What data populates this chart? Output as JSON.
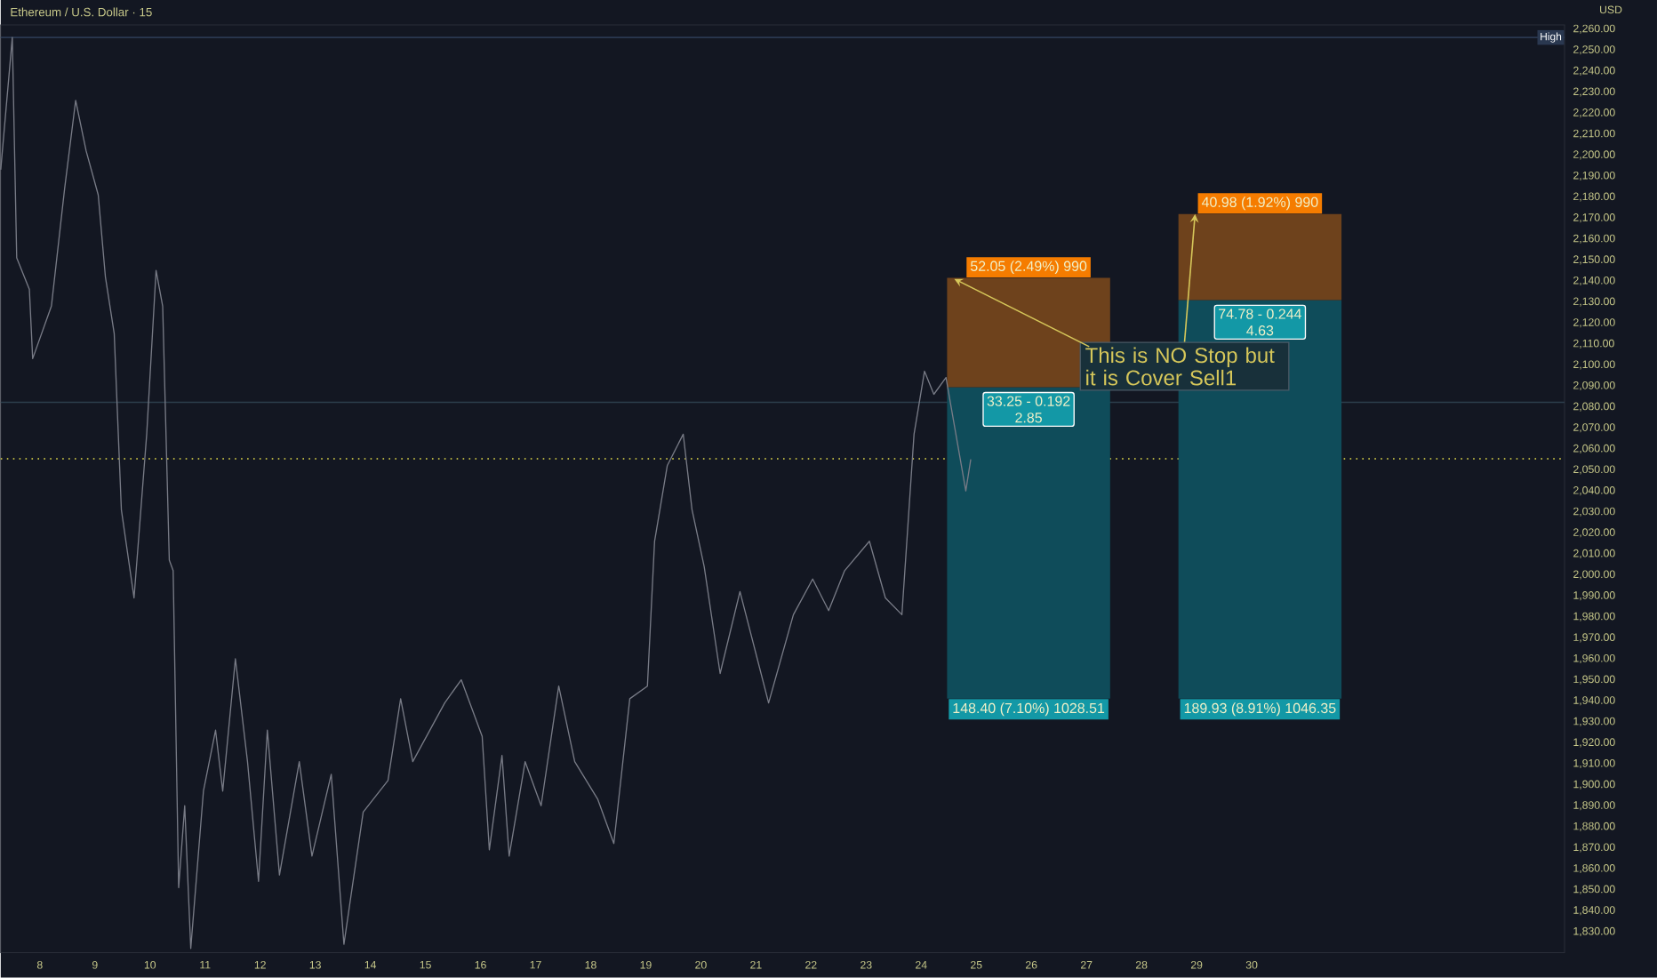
{
  "chart_data": {
    "type": "line",
    "title": "Ethereum / U.S. Dollar · 15",
    "ylabel": "USD",
    "xlim": [
      7.29,
      35.68
    ],
    "ylim": [
      1820,
      2262
    ],
    "xticks": [
      8,
      9,
      10,
      11,
      12,
      13,
      14,
      15,
      16,
      17,
      18,
      19,
      20,
      21,
      22,
      23,
      24,
      25,
      26,
      27,
      28,
      29,
      30
    ],
    "yticks": [
      {
        "value": 1830,
        "label": "1,830.00"
      },
      {
        "value": 1840,
        "label": "1,840.00"
      },
      {
        "value": 1850,
        "label": "1,850.00"
      },
      {
        "value": 1860,
        "label": "1,860.00"
      },
      {
        "value": 1870,
        "label": "1,870.00"
      },
      {
        "value": 1880,
        "label": "1,880.00"
      },
      {
        "value": 1890,
        "label": "1,890.00"
      },
      {
        "value": 1900,
        "label": "1,900.00"
      },
      {
        "value": 1910,
        "label": "1,910.00"
      },
      {
        "value": 1920,
        "label": "1,920.00"
      },
      {
        "value": 1930,
        "label": "1,930.00"
      },
      {
        "value": 1940,
        "label": "1,940.00"
      },
      {
        "value": 1950,
        "label": "1,950.00"
      },
      {
        "value": 1960,
        "label": "1,960.00"
      },
      {
        "value": 1970,
        "label": "1,970.00"
      },
      {
        "value": 1980,
        "label": "1,980.00"
      },
      {
        "value": 1990,
        "label": "1,990.00"
      },
      {
        "value": 2000,
        "label": "2,000.00"
      },
      {
        "value": 2010,
        "label": "2,010.00"
      },
      {
        "value": 2020,
        "label": "2,020.00"
      },
      {
        "value": 2030,
        "label": "2,030.00"
      },
      {
        "value": 2040,
        "label": "2,040.00"
      },
      {
        "value": 2050,
        "label": "2,050.00"
      },
      {
        "value": 2060,
        "label": "2,060.00"
      },
      {
        "value": 2070,
        "label": "2,070.00"
      },
      {
        "value": 2080,
        "label": "2,080.00"
      },
      {
        "value": 2090,
        "label": "2,090.00"
      },
      {
        "value": 2100,
        "label": "2,100.00"
      },
      {
        "value": 2110,
        "label": "2,110.00"
      },
      {
        "value": 2120,
        "label": "2,120.00"
      },
      {
        "value": 2130,
        "label": "2,130.00"
      },
      {
        "value": 2140,
        "label": "2,140.00"
      },
      {
        "value": 2150,
        "label": "2,150.00"
      },
      {
        "value": 2160,
        "label": "2,160.00"
      },
      {
        "value": 2170,
        "label": "2,170.00"
      },
      {
        "value": 2180,
        "label": "2,180.00"
      },
      {
        "value": 2190,
        "label": "2,190.00"
      },
      {
        "value": 2200,
        "label": "2,200.00"
      },
      {
        "value": 2210,
        "label": "2,210.00"
      },
      {
        "value": 2220,
        "label": "2,220.00"
      },
      {
        "value": 2230,
        "label": "2,230.00"
      },
      {
        "value": 2240,
        "label": "2,240.00"
      },
      {
        "value": 2250,
        "label": "2,250.00"
      },
      {
        "value": 2260,
        "label": "2,260.00"
      }
    ],
    "series": [
      {
        "color": "#787b86",
        "x": [
          7.29,
          7.5,
          7.58,
          7.81,
          7.87,
          8.21,
          8.45,
          8.65,
          8.84,
          9.06,
          9.19,
          9.35,
          9.48,
          9.71,
          9.94,
          10.11,
          10.23,
          10.35,
          10.42,
          10.52,
          10.63,
          10.74,
          10.97,
          11.19,
          11.32,
          11.55,
          11.77,
          11.97,
          12.13,
          12.35,
          12.71,
          12.94,
          13.29,
          13.52,
          13.87,
          14.32,
          14.55,
          14.77,
          15.35,
          15.65,
          16.03,
          16.16,
          16.39,
          16.52,
          16.81,
          17.1,
          17.42,
          17.71,
          18.13,
          18.42,
          18.71,
          19.03,
          19.16,
          19.39,
          19.68,
          19.84,
          20.06,
          20.35,
          20.71,
          21.23,
          21.68,
          22.03,
          22.32,
          22.61,
          23.06,
          23.35,
          23.65,
          23.87,
          24.06,
          24.23,
          24.45,
          24.81,
          24.9
        ],
        "values": [
          2193,
          2256,
          2151,
          2136,
          2103,
          2128,
          2184,
          2226,
          2202,
          2181,
          2142,
          2115,
          2031,
          1989,
          2067,
          2145,
          2128,
          2007,
          2002,
          1851,
          1890,
          1822,
          1897,
          1926,
          1897,
          1960,
          1911,
          1854,
          1926,
          1857,
          1911,
          1866,
          1905,
          1824,
          1887,
          1902,
          1941,
          1911,
          1939,
          1950,
          1923,
          1869,
          1914,
          1866,
          1911,
          1890,
          1947,
          1911,
          1893,
          1872,
          1941,
          1947,
          2016,
          2052,
          2067,
          2031,
          2004,
          1953,
          1992,
          1939,
          1981,
          1998,
          1983,
          2002,
          2016,
          1989,
          1981,
          2067,
          2097,
          2086,
          2094,
          2040,
          2055
        ]
      },
      {
        "type": "bar",
        "color": "#0f4c5a",
        "x": [
          25.95,
          30.15
        ],
        "base": [
          1941.0,
          1941.0
        ],
        "values": [
          148.4,
          189.93
        ],
        "value_labels": [
          "148.40 (7.10%) 1028.51",
          "189.93 (8.91%) 1046.35"
        ]
      },
      {
        "type": "bar",
        "color": "#6e421c",
        "x": [
          25.95,
          30.15
        ],
        "base": [
          2089.4,
          2130.93
        ],
        "values": [
          52.05,
          40.98
        ],
        "value_labels": [
          "52.05 (2.49%) 990",
          "40.98 (1.92%) 990"
        ]
      }
    ],
    "ref_lines": [
      {
        "axis": "y",
        "value": 2256,
        "label": "High",
        "color": "#2a3850",
        "line_style": "solid"
      },
      {
        "axis": "y",
        "value": 2082.2,
        "color": "#2c3e4c",
        "line_style": "solid"
      },
      {
        "axis": "y",
        "value": 2055.3,
        "color": "#e8e04a",
        "line_style": "dotted"
      }
    ],
    "annotations": [
      {
        "text": "33.25 - 0.192",
        "x": 25.95,
        "y": 2089.4
      },
      {
        "text": "2.85",
        "x": 25.95,
        "y": 2089.4
      },
      {
        "text": "74.78 - 0.244",
        "x": 30.15,
        "y": 2130.93
      },
      {
        "text": "4.63",
        "x": 30.15,
        "y": 2130.93
      },
      {
        "text": "This is NO Stop but it is Cover Sell1",
        "x": 24.6,
        "y": 2141
      }
    ],
    "grid": false
  }
}
